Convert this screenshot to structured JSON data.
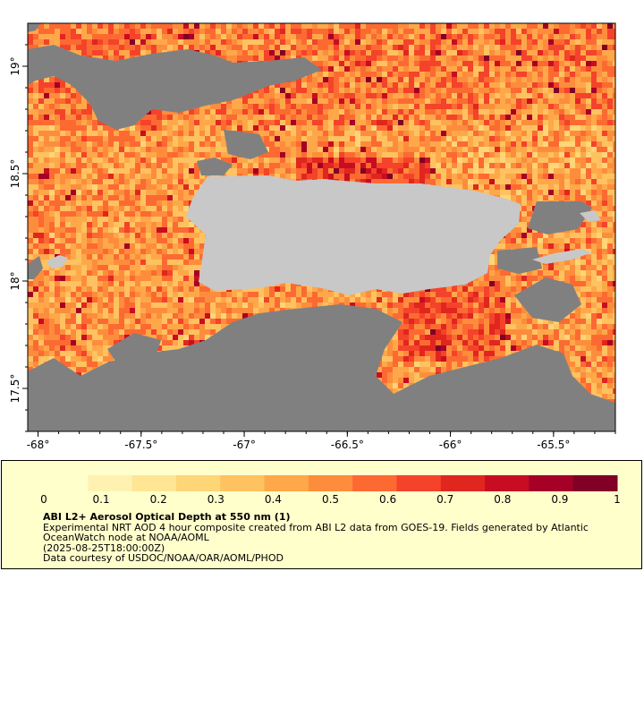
{
  "map": {
    "lon_range": [
      -68.05,
      -65.2
    ],
    "lat_range": [
      17.3,
      19.2
    ],
    "x_ticks": [
      {
        "value": -68,
        "label": "-68°"
      },
      {
        "value": -67.5,
        "label": "-67.5°"
      },
      {
        "value": -67,
        "label": "-67°"
      },
      {
        "value": -66.5,
        "label": "-66.5°"
      },
      {
        "value": -66,
        "label": "-66°"
      },
      {
        "value": -65.5,
        "label": "-65.5°"
      }
    ],
    "y_ticks": [
      {
        "value": 19,
        "label": "19°"
      },
      {
        "value": 18.5,
        "label": "18.5°"
      },
      {
        "value": 18,
        "label": "18°"
      },
      {
        "value": 17.5,
        "label": "17.5°"
      }
    ],
    "colors": {
      "no_data": "#808080",
      "land": "#c8c8c8",
      "axis": "#000000"
    }
  },
  "colorbar": {
    "min": 0,
    "max": 1,
    "tick_labels": [
      "0",
      "0.1",
      "0.2",
      "0.3",
      "0.4",
      "0.5",
      "0.6",
      "0.7",
      "0.8",
      "0.9",
      "1"
    ],
    "colors": [
      "#ffffcc",
      "#fff2b0",
      "#ffe594",
      "#fed577",
      "#fec260",
      "#fea84a",
      "#fd8d3c",
      "#fc6a32",
      "#f4432a",
      "#e0261f",
      "#c80d22",
      "#a50026",
      "#800026"
    ]
  },
  "legend": {
    "title": "ABI L2+ Aerosol Optical Depth at 550 nm (1)",
    "line1": "Experimental NRT AOD 4 hour composite created from ABI L2 data from GOES-19. Fields generated by Atlantic OceanWatch node at NOAA/AOML",
    "line2": "(2025-08-25T18:00:00Z)",
    "line3": "Data courtesy of USDOC/NOAA/OAR/AOML/PHOD"
  }
}
